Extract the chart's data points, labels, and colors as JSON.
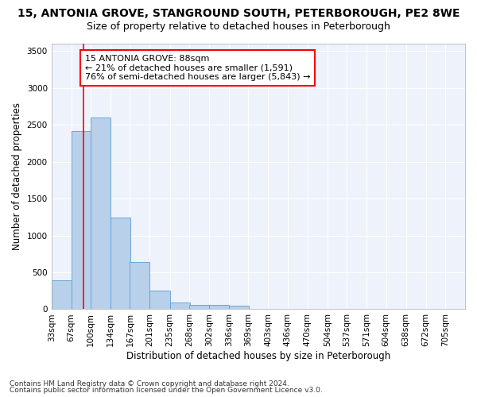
{
  "title_line1": "15, ANTONIA GROVE, STANGROUND SOUTH, PETERBOROUGH, PE2 8WE",
  "title_line2": "Size of property relative to detached houses in Peterborough",
  "xlabel": "Distribution of detached houses by size in Peterborough",
  "ylabel": "Number of detached properties",
  "footnote1": "Contains HM Land Registry data © Crown copyright and database right 2024.",
  "footnote2": "Contains public sector information licensed under the Open Government Licence v3.0.",
  "bar_color": "#b8d0ea",
  "bar_edge_color": "#5a9fd4",
  "background_color": "#eef2fb",
  "grid_color": "#ffffff",
  "annotation_text": "15 ANTONIA GROVE: 88sqm\n← 21% of detached houses are smaller (1,591)\n76% of semi-detached houses are larger (5,843) →",
  "property_size": 88,
  "bin_edges": [
    33,
    67,
    100,
    134,
    167,
    201,
    235,
    268,
    302,
    336,
    369,
    403,
    436,
    470,
    504,
    537,
    571,
    604,
    638,
    672,
    705
  ],
  "bar_heights": [
    390,
    2420,
    2600,
    1240,
    640,
    250,
    95,
    60,
    55,
    45,
    0,
    0,
    0,
    0,
    0,
    0,
    0,
    0,
    0,
    0
  ],
  "ylim": [
    0,
    3600
  ],
  "yticks": [
    0,
    500,
    1000,
    1500,
    2000,
    2500,
    3000,
    3500
  ],
  "red_line_x": 88,
  "title_fontsize": 10,
  "subtitle_fontsize": 9,
  "axis_label_fontsize": 8.5,
  "tick_fontsize": 7.5,
  "annotation_fontsize": 8,
  "footnote_fontsize": 6.5
}
